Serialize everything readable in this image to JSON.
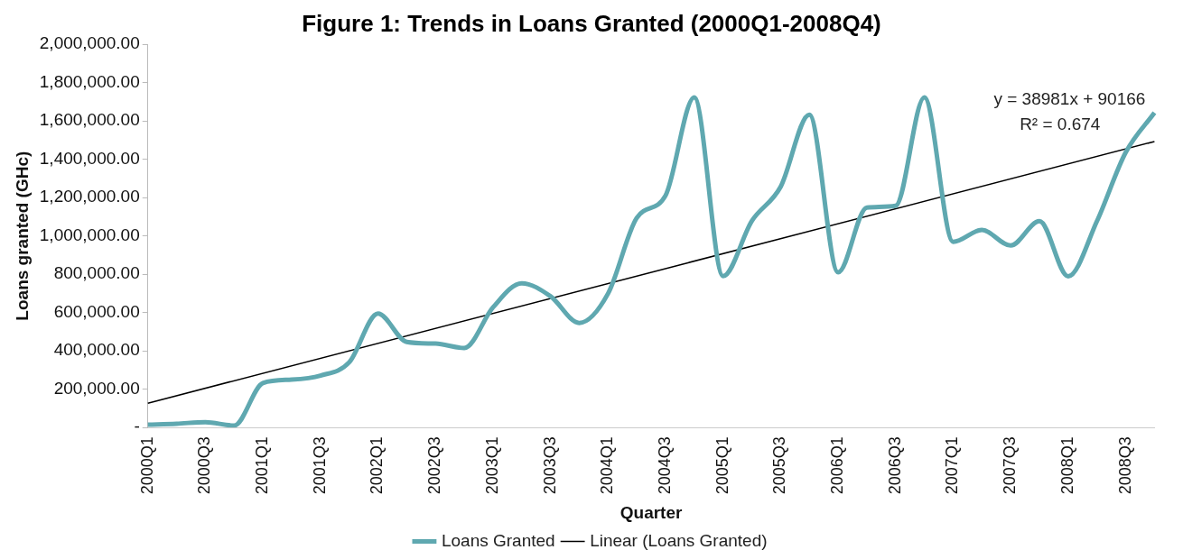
{
  "chart_data": {
    "type": "line",
    "title": "Figure 1: Trends in Loans Granted (2000Q1-2008Q4)",
    "xlabel": "Quarter",
    "ylabel": "Loans granted (GHc)",
    "categories": [
      "2000Q1",
      null,
      "2000Q3",
      null,
      "2001Q1",
      null,
      "2001Q3",
      null,
      "2002Q1",
      null,
      "2002Q3",
      null,
      "2003Q1",
      null,
      "2003Q3",
      null,
      "2004Q1",
      null,
      "2004Q3",
      null,
      "2005Q1",
      null,
      "2005Q3",
      null,
      "2006Q1",
      null,
      "2006Q3",
      null,
      "2007Q1",
      null,
      "2007Q3",
      null,
      "2008Q1",
      null,
      "2008Q3",
      null
    ],
    "series": [
      {
        "name": "Loans Granted",
        "color": "#5fa8b0",
        "values": [
          15000,
          20000,
          28000,
          10000,
          232000,
          250000,
          271000,
          340000,
          595000,
          447000,
          438000,
          415000,
          627000,
          753000,
          685000,
          546000,
          699000,
          1094000,
          1211000,
          1723000,
          790000,
          1078000,
          1256000,
          1633000,
          810000,
          1148000,
          1157000,
          1723000,
          969000,
          1031000,
          950000,
          1077000,
          789000,
          1077000,
          1436000,
          1643000
        ]
      },
      {
        "name": "Linear (Loans Granted)",
        "color": "#000000",
        "type": "line",
        "values": [
          127000,
          null,
          null,
          null,
          null,
          null,
          null,
          null,
          null,
          null,
          null,
          null,
          null,
          null,
          null,
          null,
          null,
          null,
          null,
          null,
          null,
          null,
          null,
          null,
          null,
          null,
          null,
          null,
          null,
          null,
          null,
          null,
          null,
          null,
          null,
          1493000
        ]
      }
    ],
    "ylim": [
      0,
      2000000
    ],
    "yticks": [
      {
        "value": 0,
        "label": "-"
      },
      {
        "value": 200000,
        "label": "200,000.00"
      },
      {
        "value": 400000,
        "label": "400,000.00"
      },
      {
        "value": 600000,
        "label": "600,000.00"
      },
      {
        "value": 800000,
        "label": "800,000.00"
      },
      {
        "value": 1000000,
        "label": "1,000,000.00"
      },
      {
        "value": 1200000,
        "label": "1,200,000.00"
      },
      {
        "value": 1400000,
        "label": "1,400,000.00"
      },
      {
        "value": 1600000,
        "label": "1,600,000.00"
      },
      {
        "value": 1800000,
        "label": "1,800,000.00"
      },
      {
        "value": 2000000,
        "label": "2,000,000.00"
      }
    ],
    "annotations": [
      "y = 38981x + 90166",
      "R² = 0.674"
    ],
    "legend": "bottom",
    "grid": false
  }
}
